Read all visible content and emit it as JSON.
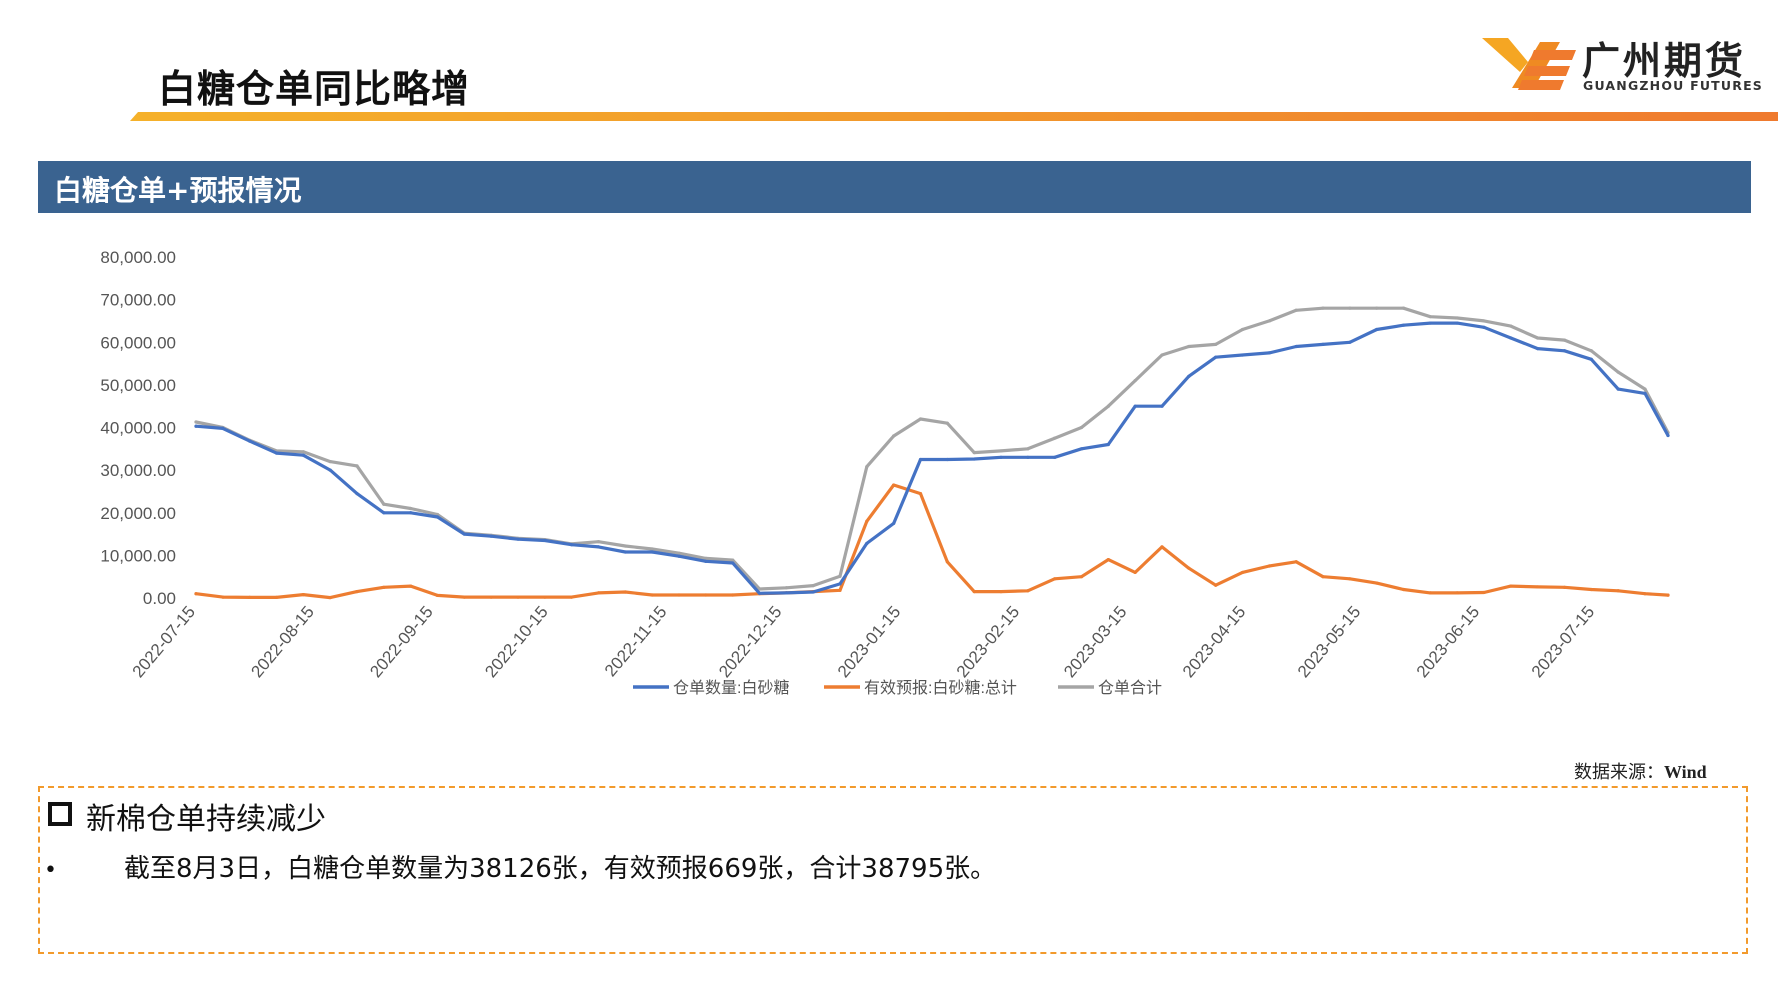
{
  "header": {
    "title": "白糖仓单同比略增",
    "logo_cn": "广州期货",
    "logo_en": "GUANGZHOU FUTURES"
  },
  "section": {
    "title": "白糖仓单+预报情况"
  },
  "source": {
    "label": "数据来源：",
    "name": "Wind"
  },
  "note": {
    "heading": "新棉仓单持续减少",
    "bullet_mark": "•",
    "bullet": "截至8月3日，白糖仓单数量为38126张，有效预报669张，合计38795张。"
  },
  "colors": {
    "title_bar": "#3a6390",
    "accent_orange": "#f29a2c",
    "series_blue": "#4472c4",
    "series_orange": "#ed7d31",
    "series_gray": "#a5a5a5"
  },
  "chart_data": {
    "type": "line",
    "ylim": [
      0,
      80000
    ],
    "y_ticks": [
      0,
      10000,
      20000,
      30000,
      40000,
      50000,
      60000,
      70000,
      80000
    ],
    "y_tick_labels": [
      "0.00",
      "10,000.00",
      "20,000.00",
      "30,000.00",
      "40,000.00",
      "50,000.00",
      "60,000.00",
      "70,000.00",
      "80,000.00"
    ],
    "x_range": [
      "2022-07-15",
      "2023-08-03"
    ],
    "x_ticks": [
      "2022-07-15",
      "2022-08-15",
      "2022-09-15",
      "2022-10-15",
      "2022-11-15",
      "2022-12-15",
      "2023-01-15",
      "2023-02-15",
      "2023-03-15",
      "2023-04-15",
      "2023-05-15",
      "2023-06-15",
      "2023-07-15"
    ],
    "legend_position": "bottom",
    "grid": false,
    "x": [
      "2022-07-15",
      "2022-07-22",
      "2022-07-29",
      "2022-08-05",
      "2022-08-12",
      "2022-08-19",
      "2022-08-26",
      "2022-09-02",
      "2022-09-09",
      "2022-09-16",
      "2022-09-23",
      "2022-09-30",
      "2022-10-07",
      "2022-10-14",
      "2022-10-21",
      "2022-10-28",
      "2022-11-04",
      "2022-11-11",
      "2022-11-18",
      "2022-11-25",
      "2022-12-02",
      "2022-12-09",
      "2022-12-16",
      "2022-12-23",
      "2022-12-30",
      "2023-01-06",
      "2023-01-13",
      "2023-01-20",
      "2023-01-27",
      "2023-02-03",
      "2023-02-10",
      "2023-02-17",
      "2023-02-24",
      "2023-03-03",
      "2023-03-10",
      "2023-03-17",
      "2023-03-24",
      "2023-03-31",
      "2023-04-07",
      "2023-04-14",
      "2023-04-21",
      "2023-04-28",
      "2023-05-05",
      "2023-05-12",
      "2023-05-19",
      "2023-05-26",
      "2023-06-02",
      "2023-06-09",
      "2023-06-16",
      "2023-06-23",
      "2023-06-30",
      "2023-07-07",
      "2023-07-14",
      "2023-07-21",
      "2023-07-28",
      "2023-08-03"
    ],
    "series": [
      {
        "name": "仓单数量:白砂糖",
        "color": "#4472c4",
        "values": [
          40300,
          39800,
          36800,
          34000,
          33500,
          30000,
          24500,
          20000,
          20000,
          19000,
          15000,
          14500,
          13800,
          13500,
          12500,
          12000,
          10800,
          10800,
          9800,
          8600,
          8200,
          1100,
          1200,
          1400,
          3300,
          12800,
          17500,
          32500,
          32500,
          32600,
          33000,
          33000,
          33000,
          35000,
          36000,
          45000,
          45000,
          52000,
          56500,
          57000,
          57500,
          59000,
          59500,
          60000,
          63000,
          64000,
          64500,
          64500,
          63500,
          61000,
          58500,
          58000,
          56000,
          49000,
          48000,
          38126
        ]
      },
      {
        "name": "有效预报:白砂糖:总计",
        "color": "#ed7d31",
        "values": [
          1000,
          200,
          150,
          150,
          800,
          100,
          1500,
          2500,
          2800,
          600,
          200,
          200,
          200,
          200,
          200,
          1200,
          1400,
          700,
          700,
          700,
          700,
          1000,
          1200,
          1500,
          1800,
          18000,
          26500,
          24500,
          8500,
          1500,
          1500,
          1700,
          4500,
          5000,
          9000,
          6000,
          12000,
          7000,
          3000,
          6000,
          7500,
          8500,
          5000,
          4500,
          3500,
          2000,
          1200,
          1200,
          1300,
          2800,
          2600,
          2500,
          2000,
          1700,
          1000,
          669
        ]
      },
      {
        "name": "仓单合计",
        "color": "#a5a5a5",
        "values": [
          41300,
          40000,
          37000,
          34500,
          34300,
          32000,
          31000,
          22000,
          21000,
          19600,
          15200,
          14700,
          14000,
          13700,
          12700,
          13200,
          12200,
          11500,
          10500,
          9300,
          8900,
          2100,
          2400,
          2900,
          5100,
          30800,
          38000,
          42000,
          41000,
          34100,
          34500,
          35000,
          37500,
          40000,
          45000,
          51000,
          57000,
          59000,
          59500,
          63000,
          65000,
          67500,
          68000,
          68000,
          68000,
          68000,
          66000,
          65700,
          65000,
          63800,
          61000,
          60500,
          58000,
          53000,
          49000,
          38795
        ]
      }
    ]
  }
}
